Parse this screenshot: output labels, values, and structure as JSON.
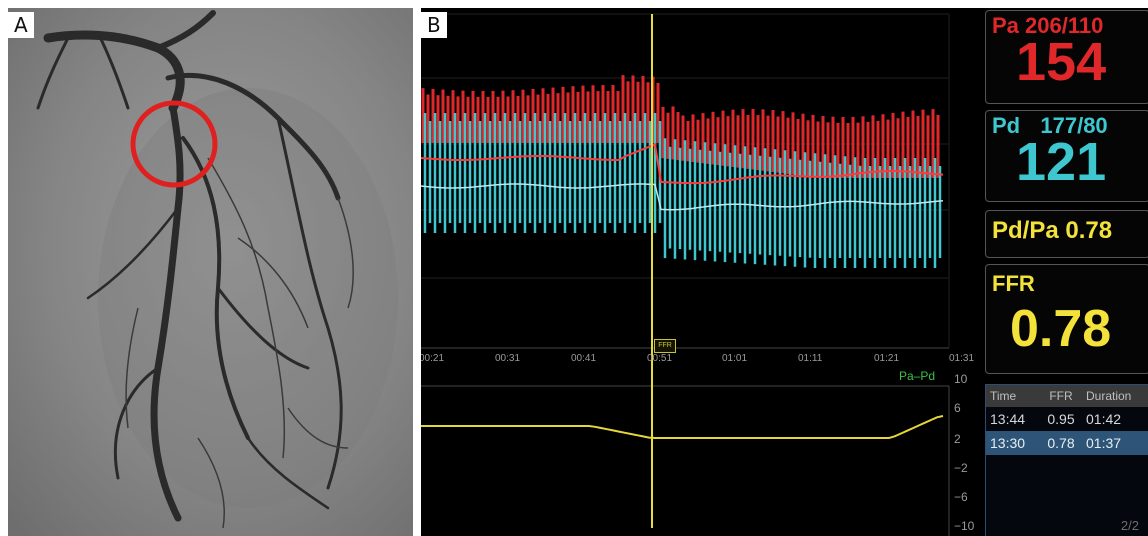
{
  "panels": {
    "a_label": "A",
    "b_label": "B"
  },
  "monitor": {
    "pa": {
      "label": "Pa",
      "range": "206/110",
      "mean": "154"
    },
    "pd": {
      "label": "Pd",
      "range": "177/80",
      "mean": "121"
    },
    "ratio": "Pd/Pa 0.78",
    "ffr": {
      "label": "FFR",
      "value": "0.78"
    },
    "time_ticks": [
      "00:21",
      "00:31",
      "00:41",
      "00:51",
      "01:01",
      "01:11",
      "01:21",
      "01:31"
    ],
    "marker_label": "FFR",
    "diff_label": "Pa–Pd",
    "diff_ticks": [
      "10",
      "6",
      "2",
      "−2",
      "−6",
      "−10"
    ],
    "table": {
      "headers": [
        "Time",
        "FFR",
        "Duration"
      ],
      "rows": [
        {
          "time": "13:44",
          "ffr": "0.95",
          "duration": "01:42"
        },
        {
          "time": "13:30",
          "ffr": "0.78",
          "duration": "01:37"
        }
      ],
      "page": "2/2"
    }
  },
  "colors": {
    "pa": "#e0282a",
    "pd": "#3fc7d0",
    "ffr": "#f2e23a",
    "diff": "#3cc24a"
  }
}
